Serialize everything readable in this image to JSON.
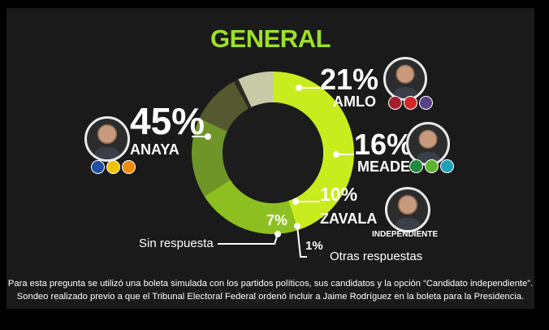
{
  "title": "GENERAL",
  "chart_data": {
    "type": "pie",
    "style": "donut",
    "title": "GENERAL",
    "categories": [
      "ANAYA",
      "AMLO",
      "MEADE",
      "ZAVALA",
      "Otras respuestas",
      "Sin respuesta"
    ],
    "values": [
      45,
      21,
      16,
      10,
      1,
      7
    ],
    "labels": [
      "45%",
      "21%",
      "16%",
      "10%",
      "1%",
      "7%"
    ],
    "colors": [
      "#c8ec1e",
      "#8dbf20",
      "#6f9528",
      "#55592f",
      "#2c2c25",
      "#c9cba8"
    ]
  },
  "candidates": {
    "anaya": {
      "pct": "45%",
      "name": "ANAYA"
    },
    "amlo": {
      "pct": "21%",
      "name": "AMLO"
    },
    "meade": {
      "pct": "16%",
      "name": "MEADE"
    },
    "zavala": {
      "pct": "10%",
      "name": "ZAVALA",
      "note": "INDEPENDIENTE"
    }
  },
  "other": {
    "pct": "1%",
    "label": "Otras respuestas"
  },
  "none": {
    "pct": "7%",
    "label": "Sin respuesta"
  },
  "footnotes": [
    "Para esta pregunta se utilizó una boleta simulada con los partidos políticos, sus candidatos y la opción “Candidato independiente”.",
    "Sondeo realizado previo a que el Tribunal Electoral Federal ordenó incluir a Jaime Rodríguez en la boleta para la Presidencia."
  ],
  "colors": {
    "accent": "#9ee027",
    "background": "#1a1a1a"
  }
}
